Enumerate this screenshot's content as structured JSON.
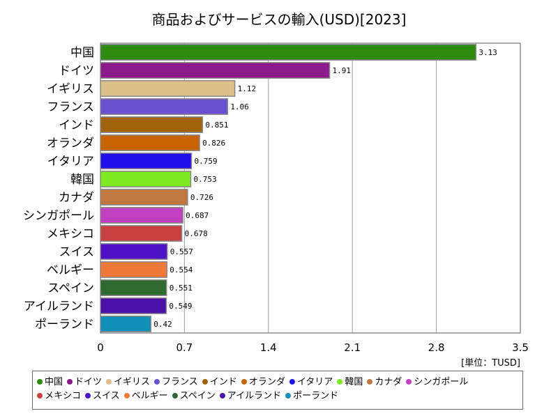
{
  "chart_data": {
    "type": "bar",
    "orientation": "horizontal",
    "title": "商品およびサービスの輸入(USD)[2023]",
    "unit_label": "[単位：TUSD]",
    "xlim": [
      0,
      3.5
    ],
    "x_ticks": [
      "0",
      "0.7",
      "1.4",
      "2.1",
      "2.8",
      "3.5"
    ],
    "grid": true,
    "legend_position": "bottom",
    "categories": [
      "中国",
      "ドイツ",
      "イギリス",
      "フランス",
      "インド",
      "オランダ",
      "イタリア",
      "韓国",
      "カナダ",
      "シンガポール",
      "メキシコ",
      "スイス",
      "ベルギー",
      "スペイン",
      "アイルランド",
      "ポーランド"
    ],
    "values": [
      3.13,
      1.91,
      1.12,
      1.06,
      0.851,
      0.826,
      0.759,
      0.753,
      0.726,
      0.687,
      0.678,
      0.557,
      0.554,
      0.551,
      0.549,
      0.42
    ],
    "value_labels": [
      "3.13",
      "1.91",
      "1.12",
      "1.06",
      "0.851",
      "0.826",
      "0.759",
      "0.753",
      "0.726",
      "0.687",
      "0.678",
      "0.557",
      "0.554",
      "0.551",
      "0.549",
      "0.42"
    ],
    "colors": [
      "#2e8b0e",
      "#8b1a8b",
      "#dcc08a",
      "#6a4fd0",
      "#a0620a",
      "#c86400",
      "#2010e8",
      "#7ee820",
      "#c07840",
      "#c040c0",
      "#c84040",
      "#5010c8",
      "#f07838",
      "#2e6a30",
      "#4a10a8",
      "#1090b8"
    ]
  }
}
